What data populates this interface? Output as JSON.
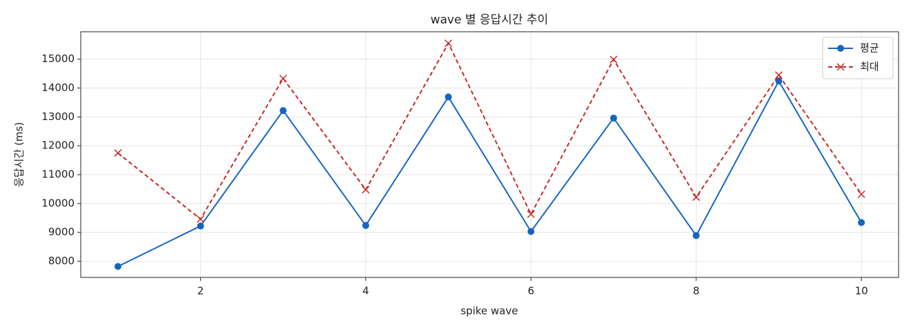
{
  "chart_data": {
    "type": "line",
    "title": "wave 별 응답시간 추이",
    "xlabel": "spike wave",
    "ylabel": "응답시간 (ms)",
    "x": [
      1,
      2,
      3,
      4,
      5,
      6,
      7,
      8,
      9,
      10
    ],
    "series": [
      {
        "name": "평균",
        "color": "#1565c0",
        "marker": "o",
        "dash": false,
        "values": [
          7820,
          9220,
          13220,
          9240,
          13690,
          9030,
          12960,
          8890,
          14240,
          9340
        ]
      },
      {
        "name": "최대",
        "color": "#c62828",
        "marker": "x",
        "dash": true,
        "values": [
          11750,
          9460,
          14330,
          10480,
          15550,
          9630,
          14990,
          10220,
          14450,
          10320
        ]
      }
    ],
    "xlim": [
      0.55,
      10.45
    ],
    "xticks": [
      2,
      4,
      6,
      8,
      10
    ],
    "ylim": [
      7440,
      15950
    ],
    "yticks": [
      8000,
      9000,
      10000,
      11000,
      12000,
      13000,
      14000,
      15000
    ],
    "grid": true,
    "legend": "upper right"
  }
}
